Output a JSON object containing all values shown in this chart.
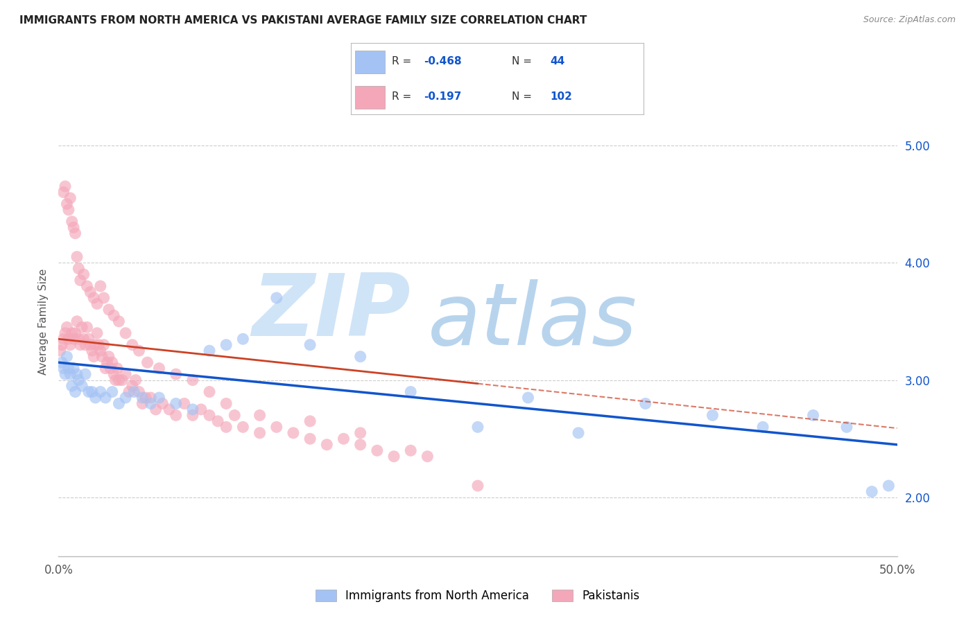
{
  "title": "IMMIGRANTS FROM NORTH AMERICA VS PAKISTANI AVERAGE FAMILY SIZE CORRELATION CHART",
  "source": "Source: ZipAtlas.com",
  "ylabel": "Average Family Size",
  "xlim": [
    0.0,
    0.5
  ],
  "ylim": [
    1.5,
    5.5
  ],
  "yticks_right": [
    2.0,
    3.0,
    4.0,
    5.0
  ],
  "blue_color": "#a4c2f4",
  "pink_color": "#f4a7b9",
  "blue_line_color": "#1155cc",
  "pink_line_color": "#cc4125",
  "watermark_zip_color": "#d0e4f7",
  "watermark_atlas_color": "#b8d4ed",
  "title_fontsize": 11,
  "blue_x": [
    0.002,
    0.003,
    0.004,
    0.005,
    0.006,
    0.007,
    0.008,
    0.009,
    0.01,
    0.011,
    0.012,
    0.014,
    0.016,
    0.018,
    0.02,
    0.022,
    0.025,
    0.028,
    0.032,
    0.036,
    0.04,
    0.045,
    0.05,
    0.055,
    0.06,
    0.07,
    0.08,
    0.09,
    0.1,
    0.11,
    0.13,
    0.15,
    0.18,
    0.21,
    0.25,
    0.28,
    0.31,
    0.35,
    0.39,
    0.42,
    0.45,
    0.47,
    0.485,
    0.495
  ],
  "blue_y": [
    3.15,
    3.1,
    3.05,
    3.2,
    3.1,
    3.05,
    2.95,
    3.1,
    2.9,
    3.05,
    3.0,
    2.95,
    3.05,
    2.9,
    2.9,
    2.85,
    2.9,
    2.85,
    2.9,
    2.8,
    2.85,
    2.9,
    2.85,
    2.8,
    2.85,
    2.8,
    2.75,
    3.25,
    3.3,
    3.35,
    3.7,
    3.3,
    3.2,
    2.9,
    2.6,
    2.85,
    2.55,
    2.8,
    2.7,
    2.6,
    2.7,
    2.6,
    2.05,
    2.1
  ],
  "pink_x": [
    0.001,
    0.002,
    0.003,
    0.004,
    0.005,
    0.006,
    0.007,
    0.008,
    0.009,
    0.01,
    0.011,
    0.012,
    0.013,
    0.014,
    0.015,
    0.016,
    0.017,
    0.018,
    0.019,
    0.02,
    0.021,
    0.022,
    0.023,
    0.024,
    0.025,
    0.026,
    0.027,
    0.028,
    0.029,
    0.03,
    0.031,
    0.032,
    0.033,
    0.034,
    0.035,
    0.036,
    0.038,
    0.04,
    0.042,
    0.044,
    0.046,
    0.048,
    0.05,
    0.052,
    0.055,
    0.058,
    0.062,
    0.066,
    0.07,
    0.075,
    0.08,
    0.085,
    0.09,
    0.095,
    0.1,
    0.105,
    0.11,
    0.12,
    0.13,
    0.14,
    0.15,
    0.16,
    0.17,
    0.18,
    0.19,
    0.2,
    0.21,
    0.22,
    0.003,
    0.004,
    0.005,
    0.006,
    0.007,
    0.008,
    0.009,
    0.01,
    0.011,
    0.012,
    0.013,
    0.015,
    0.017,
    0.019,
    0.021,
    0.023,
    0.025,
    0.027,
    0.03,
    0.033,
    0.036,
    0.04,
    0.044,
    0.048,
    0.053,
    0.06,
    0.07,
    0.08,
    0.09,
    0.1,
    0.12,
    0.15,
    0.18,
    0.25
  ],
  "pink_y": [
    3.25,
    3.3,
    3.35,
    3.4,
    3.45,
    3.35,
    3.3,
    3.4,
    3.35,
    3.4,
    3.5,
    3.35,
    3.3,
    3.45,
    3.35,
    3.3,
    3.45,
    3.35,
    3.3,
    3.25,
    3.2,
    3.3,
    3.4,
    3.3,
    3.25,
    3.2,
    3.3,
    3.1,
    3.15,
    3.2,
    3.1,
    3.15,
    3.05,
    3.0,
    3.1,
    3.0,
    3.0,
    3.05,
    2.9,
    2.95,
    3.0,
    2.9,
    2.8,
    2.85,
    2.85,
    2.75,
    2.8,
    2.75,
    2.7,
    2.8,
    2.7,
    2.75,
    2.7,
    2.65,
    2.6,
    2.7,
    2.6,
    2.55,
    2.6,
    2.55,
    2.5,
    2.45,
    2.5,
    2.45,
    2.4,
    2.35,
    2.4,
    2.35,
    4.6,
    4.65,
    4.5,
    4.45,
    4.55,
    4.35,
    4.3,
    4.25,
    4.05,
    3.95,
    3.85,
    3.9,
    3.8,
    3.75,
    3.7,
    3.65,
    3.8,
    3.7,
    3.6,
    3.55,
    3.5,
    3.4,
    3.3,
    3.25,
    3.15,
    3.1,
    3.05,
    3.0,
    2.9,
    2.8,
    2.7,
    2.65,
    2.55,
    2.1
  ],
  "pink_trend_xmax": 0.25
}
